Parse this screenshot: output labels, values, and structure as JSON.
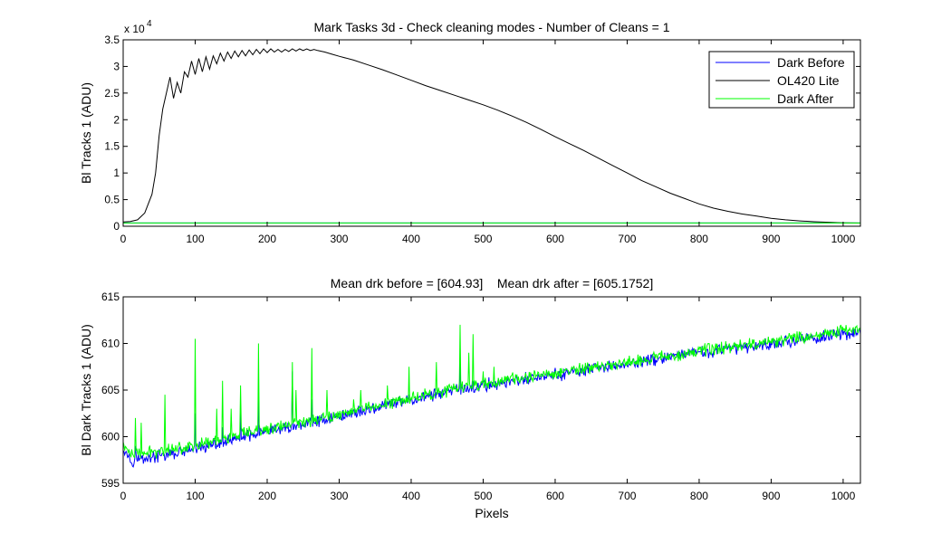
{
  "chart_data": [
    {
      "type": "line",
      "title": "Mark Tasks 3d - Check cleaning modes - Number of Cleans = 1",
      "xlabel": "",
      "ylabel": "Bl Tracks 1 (ADU)",
      "exponent_label": "x 10",
      "exponent_power": "4",
      "xlim": [
        0,
        1024
      ],
      "ylim": [
        0,
        3.5
      ],
      "xticks": [
        0,
        100,
        200,
        300,
        400,
        500,
        600,
        700,
        800,
        900,
        1000
      ],
      "yticks": [
        0,
        0.5,
        1,
        1.5,
        2,
        2.5,
        3,
        3.5
      ],
      "grid": false,
      "legend": {
        "placement": "top-right",
        "entries": [
          "Dark Before",
          "OL420 Lite",
          "Dark After"
        ]
      },
      "series": [
        {
          "name": "Dark Before",
          "color": "#0000ff",
          "x": [
            0,
            1024
          ],
          "y": [
            0.0605,
            0.0612
          ]
        },
        {
          "name": "OL420 Lite",
          "color": "#000000",
          "x": [
            0,
            10,
            20,
            30,
            40,
            45,
            50,
            55,
            60,
            65,
            70,
            75,
            80,
            85,
            90,
            95,
            100,
            105,
            110,
            115,
            120,
            125,
            130,
            135,
            140,
            145,
            150,
            155,
            160,
            165,
            170,
            175,
            180,
            185,
            190,
            195,
            200,
            205,
            210,
            215,
            220,
            225,
            230,
            235,
            240,
            245,
            250,
            255,
            260,
            265,
            270,
            280,
            290,
            300,
            320,
            340,
            360,
            380,
            400,
            420,
            440,
            460,
            480,
            500,
            520,
            540,
            560,
            580,
            600,
            620,
            640,
            660,
            680,
            700,
            720,
            740,
            760,
            780,
            800,
            820,
            840,
            860,
            880,
            900,
            920,
            940,
            960,
            980,
            1000,
            1024
          ],
          "y": [
            0.08,
            0.09,
            0.12,
            0.25,
            0.6,
            1.0,
            1.7,
            2.2,
            2.5,
            2.8,
            2.4,
            2.7,
            2.5,
            2.9,
            2.8,
            3.1,
            2.85,
            3.15,
            2.9,
            3.18,
            2.95,
            3.2,
            3.05,
            3.25,
            3.1,
            3.27,
            3.15,
            3.29,
            3.18,
            3.3,
            3.2,
            3.31,
            3.22,
            3.32,
            3.24,
            3.33,
            3.26,
            3.33,
            3.27,
            3.32,
            3.27,
            3.32,
            3.28,
            3.33,
            3.29,
            3.33,
            3.3,
            3.33,
            3.3,
            3.32,
            3.3,
            3.27,
            3.23,
            3.19,
            3.12,
            3.03,
            2.94,
            2.84,
            2.74,
            2.64,
            2.55,
            2.46,
            2.37,
            2.28,
            2.18,
            2.07,
            1.95,
            1.82,
            1.68,
            1.55,
            1.42,
            1.28,
            1.14,
            1.0,
            0.86,
            0.74,
            0.62,
            0.52,
            0.42,
            0.34,
            0.28,
            0.23,
            0.19,
            0.15,
            0.12,
            0.1,
            0.085,
            0.075,
            0.065,
            0.06
          ]
        },
        {
          "name": "Dark After",
          "color": "#00ff00",
          "x": [
            0,
            1024
          ],
          "y": [
            0.0605,
            0.0612
          ]
        }
      ]
    },
    {
      "type": "line",
      "title": "Mean drk before = [604.93]    Mean drk after = [605.1752]",
      "xlabel": "Pixels",
      "ylabel": "Bl Dark Tracks 1 (ADU)",
      "xlim": [
        0,
        1024
      ],
      "ylim": [
        595,
        615
      ],
      "xticks": [
        0,
        100,
        200,
        300,
        400,
        500,
        600,
        700,
        800,
        900,
        1000
      ],
      "yticks": [
        595,
        600,
        605,
        610,
        615
      ],
      "grid": false,
      "noise_amplitude": 0.8,
      "series": [
        {
          "name": "Dark Before",
          "color": "#0000ff",
          "trend_x": [
            0,
            10,
            20,
            60,
            100,
            200,
            300,
            400,
            500,
            600,
            700,
            800,
            900,
            1000,
            1024
          ],
          "trend_y": [
            599.0,
            597.5,
            597.6,
            598.0,
            598.6,
            600.5,
            602.2,
            604.0,
            605.5,
            606.6,
            607.8,
            609.0,
            610.0,
            611.0,
            611.3
          ],
          "spikes": [
            [
              17,
              599.0
            ],
            [
              100,
              602.5
            ],
            [
              138,
              601.0
            ],
            [
              163,
              603.0
            ],
            [
              188,
              605.0
            ],
            [
              235,
              607.0
            ],
            [
              262,
              604.0
            ],
            [
              397,
              604.5
            ],
            [
              468,
              608.0
            ],
            [
              485,
              606.0
            ]
          ]
        },
        {
          "name": "Dark After",
          "color": "#00ff00",
          "trend_x": [
            0,
            10,
            20,
            60,
            100,
            200,
            300,
            400,
            500,
            600,
            700,
            800,
            900,
            1000,
            1024
          ],
          "trend_y": [
            599.2,
            598.0,
            598.1,
            598.6,
            599.1,
            600.8,
            602.4,
            604.2,
            605.7,
            606.8,
            608.0,
            609.2,
            610.2,
            611.3,
            611.6
          ],
          "spikes": [
            [
              17,
              602.0
            ],
            [
              25,
              601.5
            ],
            [
              58,
              604.5
            ],
            [
              100,
              610.5
            ],
            [
              130,
              603.0
            ],
            [
              138,
              606.0
            ],
            [
              150,
              603.0
            ],
            [
              163,
              605.5
            ],
            [
              188,
              610.0
            ],
            [
              235,
              608.0
            ],
            [
              240,
              605.0
            ],
            [
              262,
              609.5
            ],
            [
              283,
              605.0
            ],
            [
              320,
              604.0
            ],
            [
              330,
              605.0
            ],
            [
              367,
              605.5
            ],
            [
              397,
              607.5
            ],
            [
              435,
              608.0
            ],
            [
              468,
              612.0
            ],
            [
              480,
              609.0
            ],
            [
              486,
              611.0
            ],
            [
              500,
              607.0
            ],
            [
              515,
              607.5
            ]
          ]
        }
      ]
    }
  ]
}
